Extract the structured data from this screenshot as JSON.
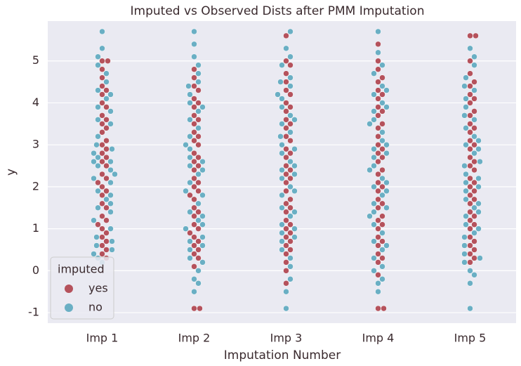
{
  "chart_data": {
    "type": "swarm",
    "title": "Imputed vs Observed Dists after PMM Imputation",
    "x_label": "Imputation Number",
    "y_label": "y",
    "categories": [
      "Imp 1",
      "Imp 2",
      "Imp 3",
      "Imp 4",
      "Imp 5"
    ],
    "legend_title": "imputed",
    "legend": "lower left",
    "grid": true,
    "ylim": [
      -1.25,
      5.95
    ],
    "yticks": [
      -1,
      0,
      1,
      2,
      3,
      4,
      5
    ],
    "series": [
      {
        "name": "yes",
        "color": "#b5525c",
        "values": [
          [
            5.0,
            4.4,
            4.2,
            4.0,
            3.9,
            3.7,
            3.5,
            3.4,
            3.3,
            3.0,
            2.9,
            2.8,
            2.6,
            2.5,
            2.3,
            2.2,
            2.0,
            1.9,
            1.8,
            1.6,
            1.5,
            1.3,
            1.2,
            1.0,
            0.9,
            0.8,
            0.7,
            0.6,
            0.5,
            0.4,
            4.6,
            4.8,
            3.1,
            2.7,
            1.1,
            0.3,
            5.0,
            4.3,
            3.6,
            2.1
          ],
          [
            4.6,
            4.4,
            4.3,
            4.1,
            3.9,
            3.7,
            3.5,
            3.3,
            3.1,
            3.0,
            2.8,
            2.6,
            2.4,
            2.2,
            2.0,
            1.9,
            1.7,
            1.5,
            1.3,
            1.1,
            1.0,
            0.8,
            0.6,
            0.4,
            0.3,
            0.1,
            -0.9,
            -0.9,
            4.8,
            3.6,
            2.7,
            1.8,
            0.9,
            0.5,
            2.1,
            3.2,
            4.0,
            1.4,
            0.7,
            2.5
          ],
          [
            5.6,
            5.0,
            4.7,
            4.5,
            4.3,
            4.0,
            3.8,
            3.6,
            3.4,
            3.2,
            2.9,
            2.7,
            2.5,
            2.3,
            2.1,
            1.9,
            1.6,
            1.4,
            1.2,
            1.0,
            0.8,
            0.6,
            0.4,
            0.2,
            0.0,
            -0.3,
            4.2,
            3.1,
            2.4,
            1.7,
            0.9,
            0.5,
            3.9,
            2.8,
            1.5,
            0.7,
            4.9,
            2.2,
            1.1,
            3.5
          ],
          [
            5.4,
            5.0,
            4.8,
            4.5,
            4.3,
            4.1,
            3.9,
            3.7,
            3.4,
            3.2,
            3.0,
            2.8,
            2.6,
            2.3,
            2.1,
            1.9,
            1.7,
            1.5,
            1.2,
            1.0,
            0.8,
            0.6,
            0.4,
            0.2,
            -0.1,
            -0.9,
            -0.9,
            4.6,
            3.5,
            2.7,
            2.0,
            1.3,
            0.7,
            0.3,
            3.8,
            2.4,
            1.6,
            4.2,
            1.1,
            2.9
          ],
          [
            5.6,
            5.6,
            5.0,
            4.7,
            4.4,
            4.2,
            4.0,
            3.7,
            3.5,
            3.3,
            3.1,
            2.9,
            2.7,
            2.5,
            2.2,
            2.0,
            1.8,
            1.6,
            1.4,
            1.2,
            1.0,
            0.8,
            0.6,
            0.4,
            0.2,
            4.5,
            3.8,
            3.0,
            2.4,
            1.7,
            1.1,
            0.5,
            4.1,
            2.6,
            1.9,
            0.7,
            3.4,
            2.1,
            1.3,
            0.3
          ]
        ]
      },
      {
        "name": "no",
        "color": "#6aafc4",
        "values": [
          [
            5.7,
            5.3,
            5.1,
            4.9,
            4.7,
            4.5,
            4.3,
            4.1,
            3.9,
            3.8,
            3.6,
            3.2,
            3.0,
            2.9,
            2.7,
            2.6,
            2.5,
            2.4,
            2.2,
            2.1,
            1.9,
            1.7,
            1.5,
            1.4,
            1.2,
            1.0,
            0.8,
            0.6,
            0.5,
            0.3,
            0.2,
            2.8,
            2.3,
            1.8,
            0.7,
            3.5,
            4.2,
            2.6,
            1.6,
            0.4
          ],
          [
            5.7,
            5.4,
            5.1,
            4.9,
            4.7,
            4.5,
            4.2,
            4.0,
            3.8,
            3.4,
            3.2,
            2.9,
            2.7,
            2.5,
            2.3,
            2.1,
            1.8,
            1.6,
            1.4,
            1.2,
            1.0,
            0.7,
            0.5,
            0.3,
            0.0,
            -0.2,
            -0.5,
            4.4,
            3.6,
            3.0,
            2.4,
            1.9,
            1.3,
            0.8,
            0.2,
            2.6,
            3.9,
            1.1,
            0.6,
            -0.3
          ],
          [
            5.7,
            5.3,
            5.1,
            4.9,
            4.6,
            4.4,
            4.1,
            3.9,
            3.7,
            3.5,
            3.3,
            3.0,
            2.8,
            2.6,
            2.4,
            2.2,
            2.0,
            1.8,
            1.5,
            1.3,
            1.1,
            0.9,
            0.7,
            0.5,
            0.3,
            0.1,
            -0.2,
            -0.5,
            -0.9,
            4.2,
            3.6,
            3.2,
            2.5,
            1.9,
            1.4,
            0.8,
            2.9,
            2.3,
            4.5,
            1.0
          ],
          [
            5.7,
            5.2,
            4.9,
            4.7,
            4.4,
            4.2,
            4.0,
            3.8,
            3.6,
            3.3,
            3.1,
            2.9,
            2.7,
            2.5,
            2.2,
            2.0,
            1.8,
            1.6,
            1.4,
            1.1,
            0.9,
            0.7,
            0.5,
            0.3,
            0.1,
            -0.2,
            -0.5,
            4.3,
            3.5,
            3.0,
            2.4,
            1.9,
            1.3,
            0.6,
            0.0,
            2.8,
            3.9,
            2.1,
            1.5,
            -0.3
          ],
          [
            5.3,
            5.1,
            4.9,
            4.6,
            4.3,
            4.1,
            3.9,
            3.6,
            3.4,
            3.2,
            3.0,
            2.8,
            2.5,
            2.3,
            2.1,
            1.9,
            1.7,
            1.5,
            1.3,
            1.1,
            0.9,
            0.6,
            0.4,
            0.2,
            0.0,
            -0.3,
            -0.9,
            4.4,
            3.7,
            3.1,
            2.6,
            2.0,
            1.4,
            0.8,
            0.3,
            2.9,
            2.2,
            1.6,
            1.0,
            -0.1
          ]
        ]
      }
    ]
  }
}
